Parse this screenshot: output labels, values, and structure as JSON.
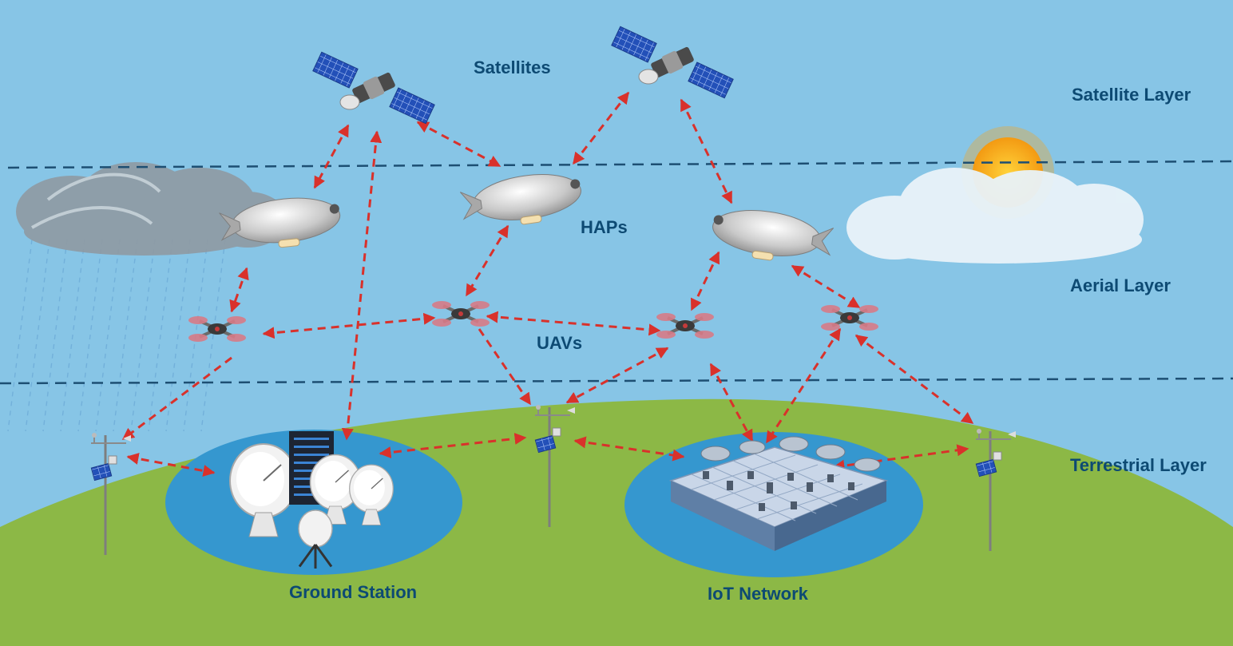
{
  "layers": {
    "satellite": "Satellite Layer",
    "aerial": "Aerial Layer",
    "terrestrial": "Terrestrial Layer"
  },
  "nodes": {
    "satellites": "Satellites",
    "haps": "HAPs",
    "uavs": "UAVs",
    "ground_station": "Ground Station",
    "iot_network": "IoT Network"
  },
  "colors": {
    "sky": "#87c5e6",
    "ground": "#8cb846",
    "pond": "#3597cf",
    "link": "#d9312b",
    "label": "#0d4a73",
    "divider": "#1d4f73",
    "sun": "#f7a21b"
  }
}
